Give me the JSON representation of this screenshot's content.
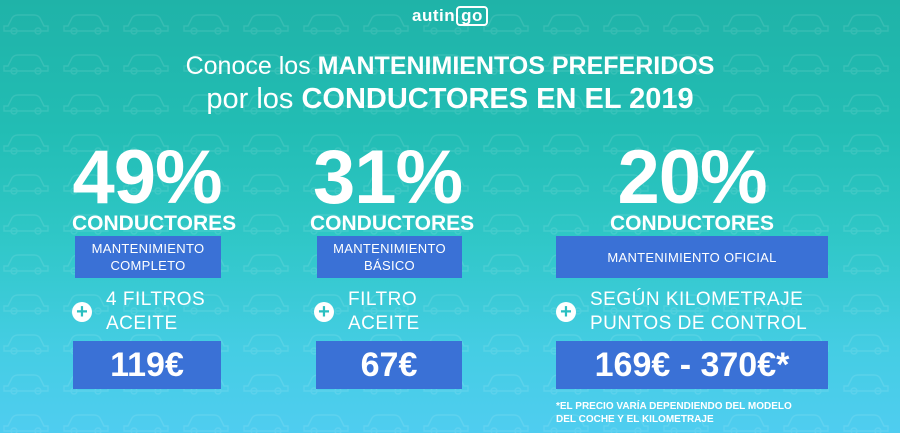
{
  "brand": {
    "prefix": "autin",
    "boxed": "go"
  },
  "headline": {
    "line1_normal": "Conoce los ",
    "line1_bold": "MANTENIMIENTOS PREFERIDOS",
    "line2_normal": "por los ",
    "line2_bold": "CONDUCTORES EN EL 2019"
  },
  "columns": [
    {
      "percent": "49%",
      "label": "CONDUCTORES",
      "plan_line1": "MANTENIMIENTO",
      "plan_line2": "COMPLETO",
      "extra_line1": "4 FILTROS",
      "extra_line2": "ACEITE",
      "price": "119€"
    },
    {
      "percent": "31%",
      "label": "CONDUCTORES",
      "plan_line1": "MANTENIMIENTO",
      "plan_line2": "BÁSICO",
      "extra_line1": "FILTRO",
      "extra_line2": "ACEITE",
      "price": "67€"
    },
    {
      "percent": "20%",
      "label": "CONDUCTORES",
      "plan_line1": "MANTENIMIENTO OFICIAL",
      "extra_line1": "SEGÚN KILOMETRAJE",
      "extra_line2": "PUNTOS DE CONTROL",
      "price": "169€ - 370€*"
    }
  ],
  "plus_symbol": "+",
  "footnote": {
    "line1": "*EL PRECIO VARÍA DEPENDIENDO DEL MODELO",
    "line2": "DEL COCHE Y EL KILOMETRAJE"
  },
  "colors": {
    "accent_box": "#3a71d6",
    "bg_top": "#1fb3a8",
    "bg_bottom": "#4fcdf0"
  }
}
